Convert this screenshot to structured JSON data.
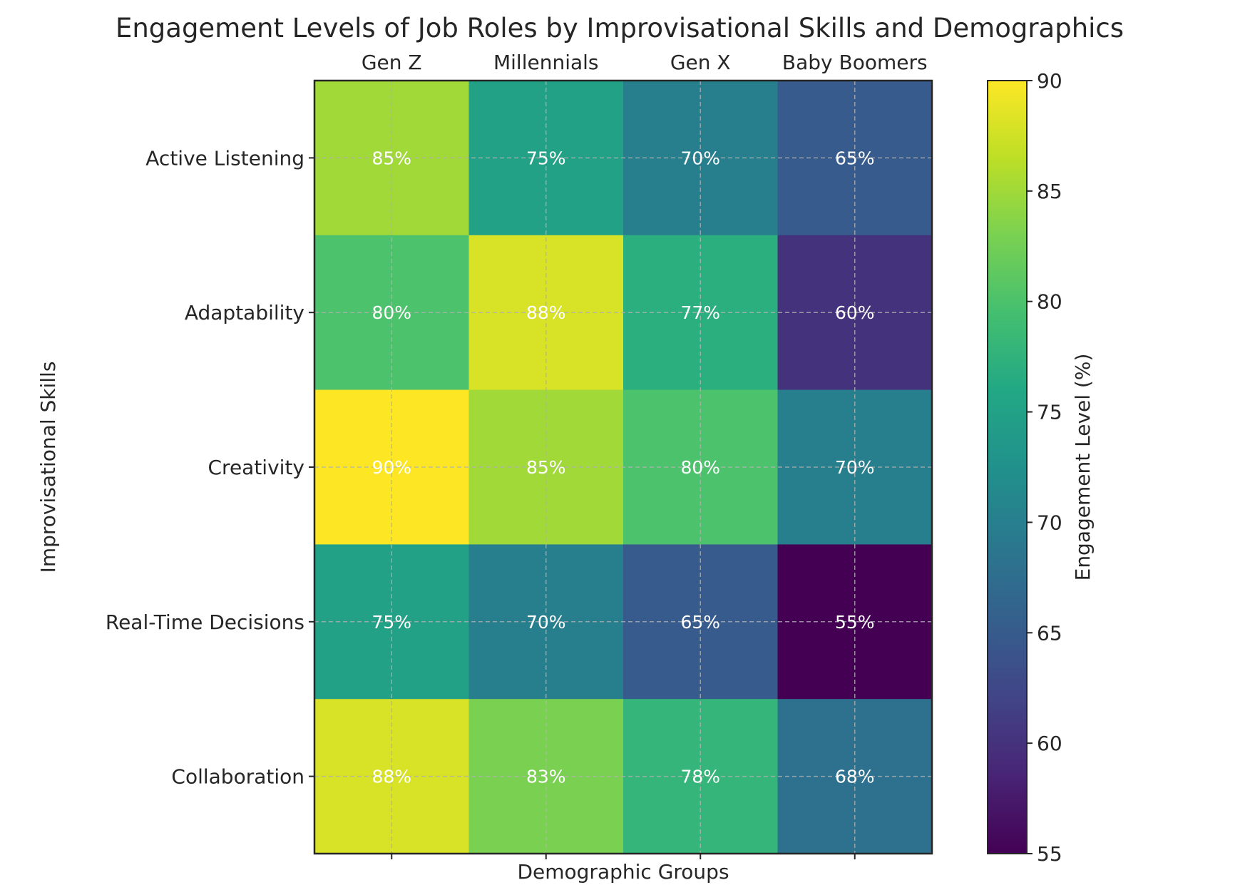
{
  "chart_data": {
    "type": "heatmap",
    "title": "Engagement Levels of Job Roles by Improvisational Skills and Demographics",
    "xlabel": "Demographic Groups",
    "ylabel": "Improvisational Skills",
    "columns": [
      "Gen Z",
      "Millennials",
      "Gen X",
      "Baby Boomers"
    ],
    "rows": [
      "Active Listening",
      "Adaptability",
      "Creativity",
      "Real-Time Decisions",
      "Collaboration"
    ],
    "values": [
      [
        85,
        75,
        70,
        65
      ],
      [
        80,
        88,
        77,
        60
      ],
      [
        90,
        85,
        80,
        70
      ],
      [
        75,
        70,
        65,
        55
      ],
      [
        88,
        83,
        78,
        68
      ]
    ],
    "value_format": "{v}%",
    "colormap": "viridis",
    "color_range": [
      55,
      90
    ],
    "colorbar": {
      "label": "Engagement Level (%)",
      "ticks": [
        55,
        60,
        65,
        70,
        75,
        80,
        85,
        90
      ]
    },
    "x_ticks_position": "top",
    "grid": true
  }
}
